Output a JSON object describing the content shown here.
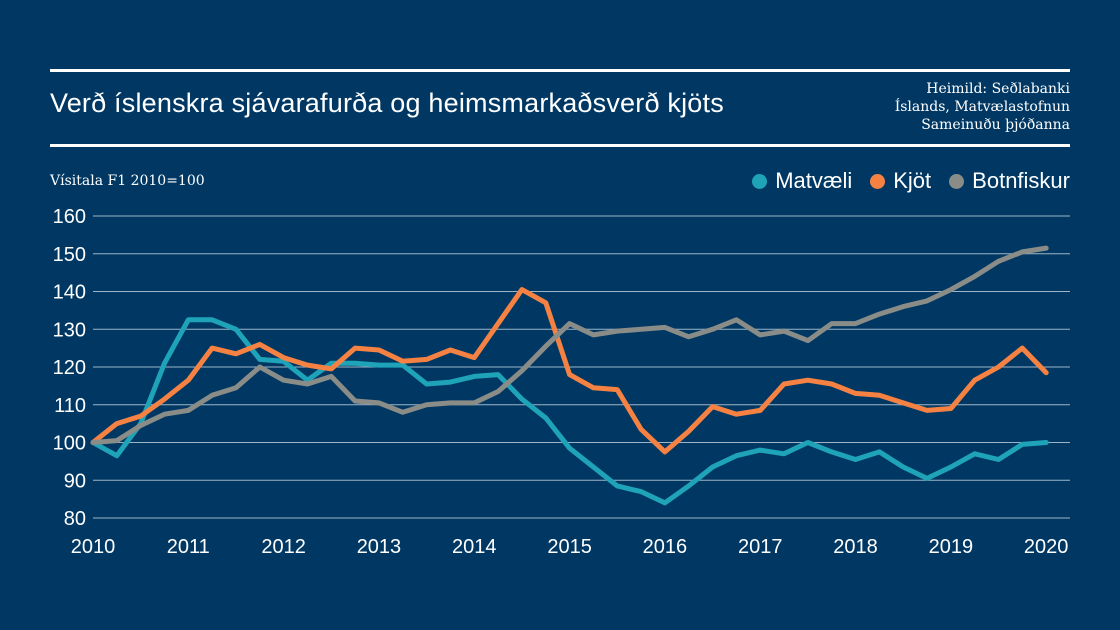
{
  "header": {
    "title": "Verð íslenskra sjávarafurða og heimsmarkaðsverð kjöts",
    "source_lines": [
      "Heimild: Seðlabanki",
      "Íslands, Matvælastofnun",
      "Sameinuðu þjóðanna"
    ]
  },
  "colors": {
    "background": "#003863",
    "gridline": "#9db4c7",
    "matvaeli": "#1fa3b8",
    "kjot": "#f58242",
    "botnfiskur": "#8a8c88"
  },
  "chart_data": {
    "type": "line",
    "title": "Verð íslenskra sjávarafurða og heimsmarkaðsverð kjöts",
    "ylabel": "Vísitala F1 2010=100",
    "xlabel": "",
    "ylim": [
      80,
      160
    ],
    "yticks": [
      80,
      90,
      100,
      110,
      120,
      130,
      140,
      150,
      160
    ],
    "xlim": [
      2010,
      2020.25
    ],
    "xticks": [
      "2010",
      "2011",
      "2012",
      "2013",
      "2014",
      "2015",
      "2016",
      "2017",
      "2018",
      "2019",
      "2020"
    ],
    "grid": true,
    "legend_position": "top-right",
    "x": [
      2010,
      2010.25,
      2010.5,
      2010.75,
      2011,
      2011.25,
      2011.5,
      2011.75,
      2012,
      2012.25,
      2012.5,
      2012.75,
      2013,
      2013.25,
      2013.5,
      2013.75,
      2014,
      2014.25,
      2014.5,
      2014.75,
      2015,
      2015.25,
      2015.5,
      2015.75,
      2016,
      2016.25,
      2016.5,
      2016.75,
      2017,
      2017.25,
      2017.5,
      2017.75,
      2018,
      2018.25,
      2018.5,
      2018.75,
      2019,
      2019.25,
      2019.5,
      2019.75,
      2020
    ],
    "series": [
      {
        "name": "Matvæli",
        "key": "matvaeli",
        "values": [
          100,
          96.5,
          105,
          121,
          132.5,
          132.5,
          130,
          122,
          121.5,
          116.5,
          121,
          121,
          120.5,
          120.5,
          115.5,
          116,
          117.5,
          118,
          111.5,
          106.5,
          98.5,
          93.5,
          88.5,
          87,
          84,
          88.5,
          93.5,
          96.5,
          98,
          97,
          100,
          97.5,
          95.5,
          97.5,
          93.5,
          90.5,
          93.5,
          97,
          95.5,
          99.5,
          100
        ]
      },
      {
        "name": "Kjöt",
        "key": "kjot",
        "values": [
          100,
          105,
          107,
          111.5,
          116.5,
          125,
          123.5,
          126,
          122.5,
          120.5,
          119.5,
          125,
          124.5,
          121.5,
          122,
          124.5,
          122.5,
          131.5,
          140.5,
          137,
          118,
          114.5,
          114,
          103.5,
          97.5,
          103,
          109.5,
          107.5,
          108.5,
          115.5,
          116.5,
          115.5,
          113,
          112.5,
          110.5,
          108.5,
          109,
          116.5,
          120,
          125,
          118.5
        ]
      },
      {
        "name": "Botnfiskur",
        "key": "botnfiskur",
        "values": [
          100,
          100.5,
          104.5,
          107.5,
          108.5,
          112.5,
          114.5,
          120,
          116.5,
          115.5,
          117.5,
          111,
          110.5,
          108,
          110,
          110.5,
          110.5,
          113.5,
          119,
          125.5,
          131.5,
          128.5,
          129.5,
          130,
          130.5,
          128,
          130,
          132.5,
          128.5,
          129.5,
          127,
          131.5,
          131.5,
          134,
          136,
          137.5,
          140.5,
          144,
          148,
          150.5,
          151.5
        ]
      }
    ]
  }
}
